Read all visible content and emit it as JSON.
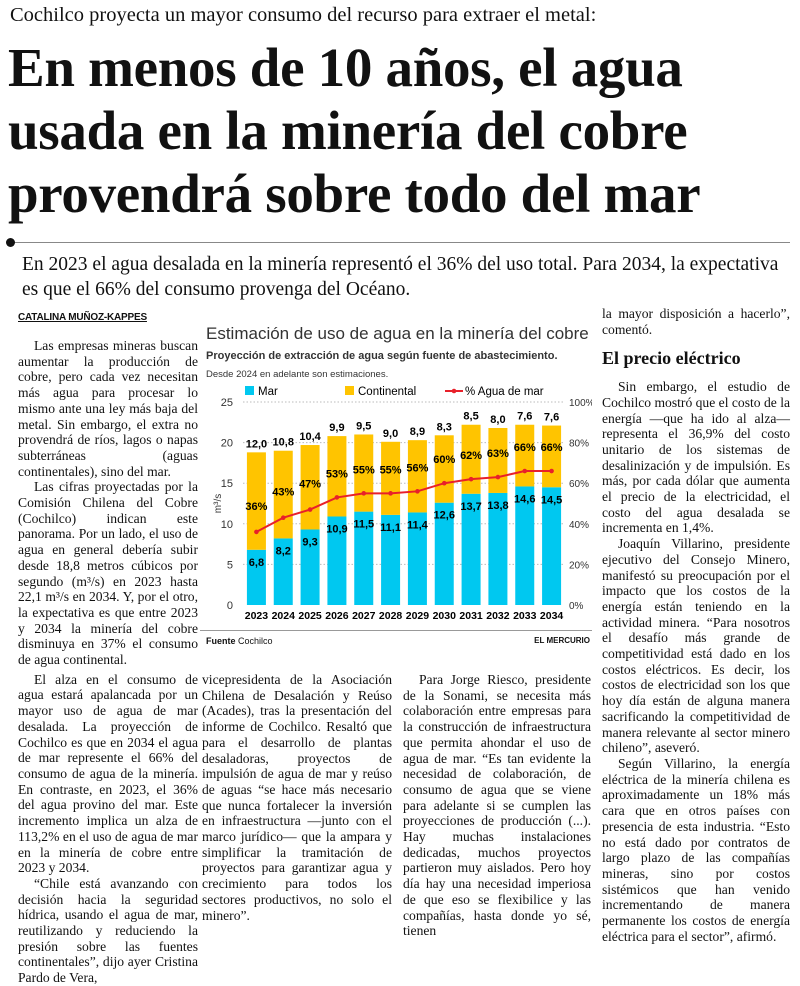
{
  "kicker": "Cochilco proyecta un mayor consumo del recurso para extraer el metal:",
  "headline": "En menos de 10 años, el agua usada en la minería del cobre provendrá sobre todo del mar",
  "subhead": "En 2023 el agua desalada en la minería representó el 36% del uso total. Para 2034, la expectativa es que el 66% del consumo provenga del Océano.",
  "author": "CATALINA MUÑOZ-KAPPES",
  "col1": [
    "Las empresas mineras buscan aumentar la producción de cobre, pero cada vez necesitan más agua para procesar lo mismo ante una ley más baja del metal. Sin embargo, el extra no provendrá de ríos, lagos o napas subterráneas (aguas continentales), sino del mar.",
    "Las cifras proyectadas por la Comisión Chilena del Cobre (Cochilco) indican este panorama. Por un lado, el uso de agua en general debería subir desde 18,8 metros cúbicos por segundo (m³/s) en 2023 hasta 22,1 m³/s en 2034. Y, por el otro, la expectativa es que entre 2023 y 2034 la minería del cobre disminuya en 37% el consumo de agua continental.",
    "El alza en el consumo de agua estará apalancada por un mayor uso de agua de mar desalada. La proyección de Cochilco es que en 2034 el agua de mar represente el 66% del consumo de agua de la minería. En contraste, en 2023, el 36% del agua provino del mar. Este incremento implica un alza de 113,2% en el uso de agua de mar en la minería de cobre entre 2023 y 2034.",
    "“Chile está avanzando con decisión hacia la seguridad hídrica, usando el agua de mar, reutilizando y reduciendo la presión sobre las fuentes continentales”, dijo ayer Cristina Pardo de Vera,"
  ],
  "col2": [
    "vicepresidenta de la Asociación Chilena de Desalación y Reúso (Acades), tras la presentación del informe de Cochilco. Resaltó que para el desarrollo de plantas desaladoras, proyectos de impulsión de agua de mar y reúso de aguas “se hace más necesario que nunca fortalecer la inversión en infraestructura —junto con el marco jurídico— que la ampara y simplificar la tramitación de proyectos para garantizar agua y crecimiento para todos los sectores productivos, no solo el minero”."
  ],
  "col3": [
    "Para Jorge Riesco, presidente de la Sonami, se necesita más colaboración entre empresas para la construcción de infraestructura que permita ahondar el uso de agua de mar. “Es tan evidente la necesidad de colaboración, de consumo de agua que se viene para adelante si se cumplen las proyecciones de producción (...). Hay muchas instalaciones dedicadas, muchos proyectos partieron muy aislados. Pero hoy día hay una necesidad imperiosa de que eso se flexibilice y las compañías, hasta donde yo sé, tienen"
  ],
  "col4": {
    "lead": "la mayor disposición a hacerlo”, comentó.",
    "heading": "El precio eléctrico",
    "paragraphs": [
      "Sin embargo, el estudio de Cochilco mostró que el costo de la energía —que ha ido al alza— representa el 36,9% del costo unitario de los sistemas de desalinización y de impulsión. Es más, por cada dólar que aumenta el precio de la electricidad, el costo del agua desalada se incrementa en 1,4%.",
      "Joaquín Villarino, presidente ejecutivo del Consejo Minero, manifestó su preocupación por el impacto que los costos de la energía están teniendo en la actividad minera. “Para nosotros el desafío más grande de competitividad está dado en los costos eléctricos. Es decir, los costos de electricidad son los que hoy día están de alguna manera sacrificando la competitividad de manera relevante al sector minero chileno”, aseveró.",
      "Según Villarino, la energía eléctrica de la minería chilena es aproximadamente un 18% más cara que en otros países con presencia de esta industria. “Esto no está dado por contratos de largo plazo de las compañías mineras, sino por costos sistémicos que han venido incrementando de manera permanente los costos de energía eléctrica para el sector”, afirmó."
    ]
  },
  "chart_data": {
    "type": "bar",
    "title": "Estimación de uso de agua en la minería del cobre",
    "subtitle": "Proyección de extracción de agua según fuente de abastecimiento.",
    "note": "Desde 2024 en adelante son estimaciones.",
    "ylabel": "m³/s",
    "ylim": [
      0,
      25
    ],
    "y_ticks": [
      "0",
      "5",
      "10",
      "15",
      "20",
      "25"
    ],
    "y2lim": [
      0,
      100
    ],
    "y2_ticks": [
      "0%",
      "20%",
      "40%",
      "60%",
      "80%",
      "100%"
    ],
    "categories": [
      "2023",
      "2024",
      "2025",
      "2026",
      "2027",
      "2028",
      "2029",
      "2030",
      "2031",
      "2032",
      "2033",
      "2034"
    ],
    "stacked": true,
    "legend_position": "top",
    "grid": true,
    "series": [
      {
        "name": "Mar",
        "color": "#00c8f0",
        "values": [
          6.8,
          8.2,
          9.3,
          10.9,
          11.5,
          11.1,
          11.4,
          12.6,
          13.7,
          13.8,
          14.6,
          14.5
        ],
        "labels": [
          "6,8",
          "8,2",
          "9,3",
          "10,9",
          "11,5",
          "11,1",
          "11,4",
          "12,6",
          "13,7",
          "13,8",
          "14,6",
          "14,5"
        ]
      },
      {
        "name": "Continental",
        "color": "#ffc400",
        "values": [
          12.0,
          10.8,
          10.4,
          9.9,
          9.5,
          9.0,
          8.9,
          8.3,
          8.5,
          8.0,
          7.6,
          7.6
        ],
        "labels": [
          "12,0",
          "10,8",
          "10,4",
          "9,9",
          "9,5",
          "9,0",
          "8,9",
          "8,3",
          "8,5",
          "8,0",
          "7,6",
          "7,6"
        ]
      },
      {
        "name": "% Agua de mar",
        "type": "line",
        "axis": "right",
        "color": "#e8202a",
        "values": [
          36,
          43,
          47,
          53,
          55,
          55,
          56,
          60,
          62,
          63,
          66,
          66
        ],
        "labels": [
          "36%",
          "43%",
          "47%",
          "53%",
          "55%",
          "55%",
          "56%",
          "60%",
          "62%",
          "63%",
          "66%",
          "66%"
        ]
      }
    ],
    "source_label": "Fuente",
    "source": "Cochilco",
    "brand": "EL MERCURIO"
  }
}
